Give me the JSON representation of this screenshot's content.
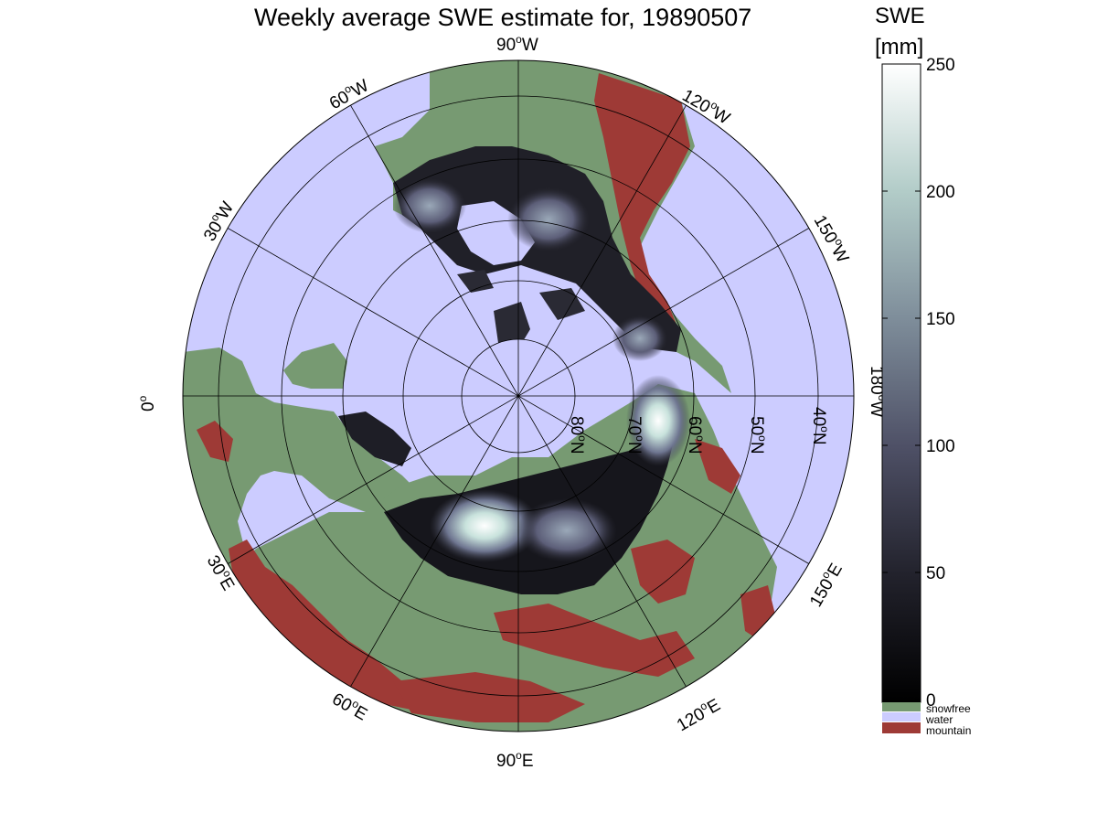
{
  "title": "Weekly average SWE estimate for, 19890507",
  "colorbar": {
    "title_line1": "SWE",
    "title_line2": "[mm]",
    "ticks": [
      "0",
      "50",
      "100",
      "150",
      "200",
      "250"
    ],
    "min": 0,
    "max": 250,
    "categories": [
      {
        "label": "snowfree",
        "color": "#779a72"
      },
      {
        "label": "water",
        "color": "#ccccff"
      },
      {
        "label": "mountain",
        "color": "#9e3a36"
      }
    ]
  },
  "map": {
    "projection": "north-polar-stereographic",
    "longitude_labels": {
      "90W": {
        "deg": "90",
        "dir": "W"
      },
      "120W": {
        "deg": "120",
        "dir": "W"
      },
      "150W": {
        "deg": "150",
        "dir": "W"
      },
      "180W": {
        "deg": "180",
        "dir": "W"
      },
      "150E": {
        "deg": "150",
        "dir": "E"
      },
      "120E": {
        "deg": "120",
        "dir": "E"
      },
      "90E": {
        "deg": "90",
        "dir": "E"
      },
      "60E": {
        "deg": "60",
        "dir": "E"
      },
      "30E": {
        "deg": "30",
        "dir": "E"
      },
      "0": {
        "deg": "0",
        "dir": ""
      },
      "30W": {
        "deg": "30",
        "dir": "W"
      },
      "60W": {
        "deg": "60",
        "dir": "W"
      }
    },
    "latitude_labels": [
      {
        "deg": "80",
        "dir": "N"
      },
      {
        "deg": "70",
        "dir": "N"
      },
      {
        "deg": "60",
        "dir": "N"
      },
      {
        "deg": "50",
        "dir": "N"
      },
      {
        "deg": "40",
        "dir": "N"
      }
    ],
    "colors": {
      "water": "#ccccff",
      "snowfree": "#779a72",
      "mountain": "#9e3a36",
      "snow_low": "#121214",
      "snow_mid": "#5c5e78",
      "snow_high": "#c8e2dc"
    }
  }
}
